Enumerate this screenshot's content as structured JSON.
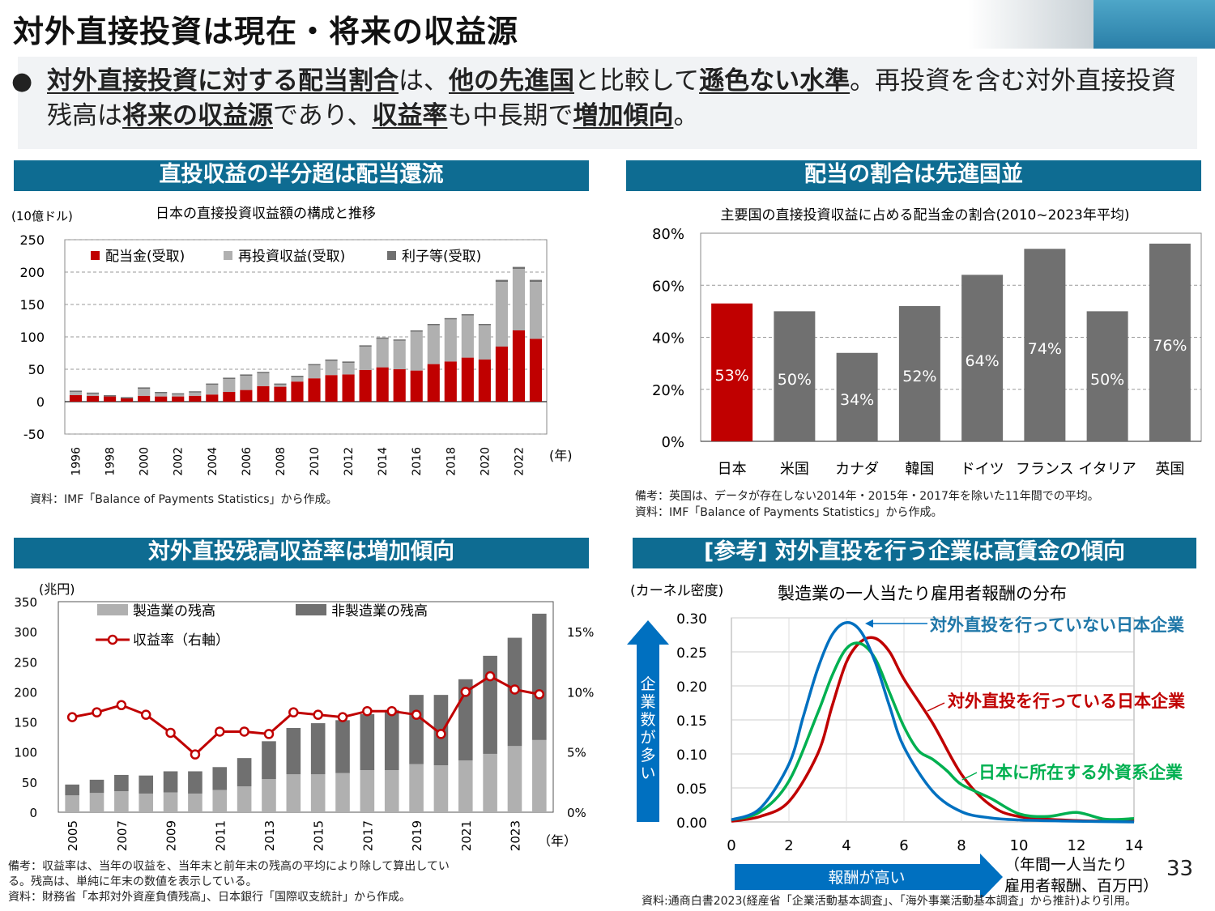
{
  "title": "対外直接投資は現在・将来の収益源",
  "summary": {
    "segments": [
      {
        "t": "対外直接投資に対する配当割合",
        "b": true
      },
      {
        "t": "は、",
        "b": false
      },
      {
        "t": "他の先進国",
        "b": true
      },
      {
        "t": "と比較して",
        "b": false
      },
      {
        "t": "遜色ない水準",
        "b": true
      },
      {
        "t": "。再投資を含む対外直接投資残高は",
        "b": false
      },
      {
        "t": "将来の収益源",
        "b": true
      },
      {
        "t": "であり、",
        "b": false
      },
      {
        "t": "収益率",
        "b": true
      },
      {
        "t": "も中長期で",
        "b": false
      },
      {
        "t": "増加傾向",
        "b": true
      },
      {
        "t": "。",
        "b": false
      }
    ]
  },
  "sections": {
    "s1": "直投収益の半分超は配当還流",
    "s2": "配当の割合は先進国並",
    "s3": "対外直投残高収益率は増加傾向",
    "s4": "[参考] 対外直投を行う企業は高賃金の傾向"
  },
  "notes": {
    "n1": "資料：IMF「Balance of Payments Statistics」から作成。",
    "n2a": "備考：英国は、データが存在しない2014年・2015年・2017年を除いた11年間での平均。",
    "n2b": "資料：IMF「Balance of Payments Statistics」から作成。",
    "n3a": "備考：収益率は、当年の収益を、当年末と前年末の残高の平均により除して算出してい",
    "n3b": "る。残高は、単純に年末の数値を表示している。",
    "n3c": "資料：財務省「本邦対外資産負債残高」、日本銀行「国際収支統計」から作成。",
    "n4": "資料:通商白書2023(経産省「企業活動基本調査」、「海外事業活動基本調査」から推計)より引用。"
  },
  "page_number": "33",
  "colors": {
    "red": "#c00000",
    "lightgray": "#b0b0b0",
    "darkgray": "#707070",
    "blue": "#0070c0",
    "green": "#00b050",
    "header": "#0e6c92"
  },
  "chart_data": [
    {
      "type": "bar",
      "title": "日本の直接投資収益額の構成と推移",
      "ylabel": "(10億ドル)",
      "xlabel": "(年)",
      "ylim": [
        -50,
        250
      ],
      "yticks": [
        250,
        200,
        150,
        100,
        50,
        0,
        -50
      ],
      "xtick_labels": [
        "1996",
        "1998",
        "2000",
        "2002",
        "2004",
        "2006",
        "2008",
        "2010",
        "2012",
        "2014",
        "2016",
        "2018",
        "2020",
        "2022"
      ],
      "categories": [
        "1996",
        "1997",
        "1998",
        "1999",
        "2000",
        "2001",
        "2002",
        "2003",
        "2004",
        "2005",
        "2006",
        "2007",
        "2008",
        "2009",
        "2010",
        "2011",
        "2012",
        "2013",
        "2014",
        "2015",
        "2016",
        "2017",
        "2018",
        "2019",
        "2020",
        "2021",
        "2022",
        "2023"
      ],
      "series": [
        {
          "name": "配当金(受取)",
          "values": [
            10,
            9,
            8,
            5,
            9,
            8,
            8,
            9,
            11,
            15,
            18,
            24,
            23,
            31,
            36,
            41,
            42,
            49,
            53,
            50,
            48,
            58,
            62,
            68,
            65,
            85,
            110,
            97
          ]
        },
        {
          "name": "再投資収益(受取)",
          "values": [
            5,
            3,
            0,
            0,
            11,
            5,
            3,
            5,
            15,
            20,
            22,
            20,
            3,
            7,
            20,
            22,
            18,
            36,
            44,
            44,
            60,
            60,
            65,
            65,
            53,
            100,
            95,
            88
          ]
        },
        {
          "name": "利子等(受取)",
          "values": [
            2,
            2,
            2,
            2,
            2,
            2,
            2,
            2,
            2,
            2,
            2,
            2,
            2,
            2,
            2,
            2,
            2,
            2,
            2,
            2,
            2,
            2,
            2,
            2,
            2,
            3,
            3,
            3
          ]
        }
      ]
    },
    {
      "type": "bar",
      "title": "主要国の直接投資収益に占める配当金の割合(2010~2023年平均)",
      "ylim": [
        0,
        80
      ],
      "yticks": [
        "80%",
        "60%",
        "40%",
        "20%",
        "0%"
      ],
      "categories": [
        "日本",
        "米国",
        "カナダ",
        "韓国",
        "ドイツ",
        "フランス",
        "イタリア",
        "英国"
      ],
      "values": [
        53,
        50,
        34,
        52,
        64,
        74,
        50,
        76
      ],
      "labels": [
        "53%",
        "50%",
        "34%",
        "52%",
        "64%",
        "74%",
        "50%",
        "76%"
      ]
    },
    {
      "type": "bar",
      "ylabel": "(兆円)",
      "xlabel": "（年）",
      "ylim": [
        0,
        350
      ],
      "y2lim": [
        0,
        17.5
      ],
      "yticks": [
        350,
        300,
        250,
        200,
        150,
        100,
        50,
        0
      ],
      "y2ticks": [
        "15%",
        "10%",
        "5%",
        "0%"
      ],
      "xtick_labels": [
        "2005",
        "2007",
        "2009",
        "2011",
        "2013",
        "2015",
        "2017",
        "2019",
        "2021",
        "2023"
      ],
      "categories": [
        "2005",
        "2006",
        "2007",
        "2008",
        "2009",
        "2010",
        "2011",
        "2012",
        "2013",
        "2014",
        "2015",
        "2016",
        "2017",
        "2018",
        "2019",
        "2020",
        "2021",
        "2022",
        "2023",
        "2024"
      ],
      "series": [
        {
          "name": "製造業の残高",
          "values": [
            28,
            32,
            35,
            31,
            33,
            31,
            37,
            43,
            55,
            63,
            63,
            65,
            70,
            70,
            80,
            78,
            86,
            97,
            110,
            120
          ]
        },
        {
          "name": "非製造業の残高",
          "values": [
            18,
            22,
            27,
            30,
            35,
            37,
            38,
            47,
            63,
            77,
            85,
            88,
            93,
            100,
            115,
            117,
            135,
            163,
            180,
            210
          ]
        },
        {
          "name": "収益率（右軸）",
          "values": [
            7.9,
            8.3,
            8.9,
            8.1,
            6.6,
            4.8,
            6.7,
            6.7,
            6.5,
            8.3,
            8.1,
            7.9,
            8.4,
            8.4,
            8.1,
            6.5,
            10.0,
            11.3,
            10.2,
            9.8
          ]
        }
      ]
    },
    {
      "type": "line",
      "title": "製造業の一人当たり雇用者報酬の分布",
      "ylabel": "(カーネル密度)",
      "xlabel": "（年間一人当たり雇用者報酬、百万円）",
      "ylim": [
        0,
        0.3
      ],
      "xlim": [
        0,
        14
      ],
      "yticks": [
        "0.30",
        "0.25",
        "0.20",
        "0.15",
        "0.10",
        "0.05",
        "0.00"
      ],
      "xticks": [
        "0",
        "2",
        "4",
        "6",
        "8",
        "10",
        "12",
        "14"
      ],
      "y_arrow_label": "企業数が多い",
      "x_arrow_label": "報酬が高い",
      "series": [
        {
          "name": "対外直投を行っていない日本企業",
          "x": [
            0,
            1,
            2,
            2.5,
            3,
            3.5,
            4,
            4.5,
            5,
            5.5,
            6,
            7,
            8,
            9,
            10,
            12,
            14
          ],
          "y": [
            0.003,
            0.02,
            0.085,
            0.155,
            0.225,
            0.275,
            0.293,
            0.28,
            0.235,
            0.17,
            0.11,
            0.045,
            0.015,
            0.006,
            0.003,
            0.001,
            0.0
          ]
        },
        {
          "name": "対外直投を行っている日本企業",
          "x": [
            0,
            1,
            2,
            3,
            3.5,
            4,
            4.5,
            5,
            5.5,
            6,
            7,
            8,
            9,
            10,
            12,
            14
          ],
          "y": [
            0.001,
            0.008,
            0.03,
            0.1,
            0.17,
            0.235,
            0.265,
            0.27,
            0.25,
            0.21,
            0.145,
            0.07,
            0.025,
            0.008,
            0.002,
            0.001
          ]
        },
        {
          "name": "日本に所在する外資系企業",
          "x": [
            0,
            1,
            2,
            3,
            3.5,
            4,
            4.5,
            5,
            5.5,
            6,
            6.5,
            7,
            7.5,
            8,
            9,
            10,
            11,
            12,
            13,
            14
          ],
          "y": [
            0.003,
            0.015,
            0.06,
            0.16,
            0.215,
            0.255,
            0.262,
            0.24,
            0.19,
            0.14,
            0.105,
            0.092,
            0.075,
            0.055,
            0.035,
            0.012,
            0.008,
            0.014,
            0.004,
            0.005
          ]
        }
      ]
    }
  ]
}
